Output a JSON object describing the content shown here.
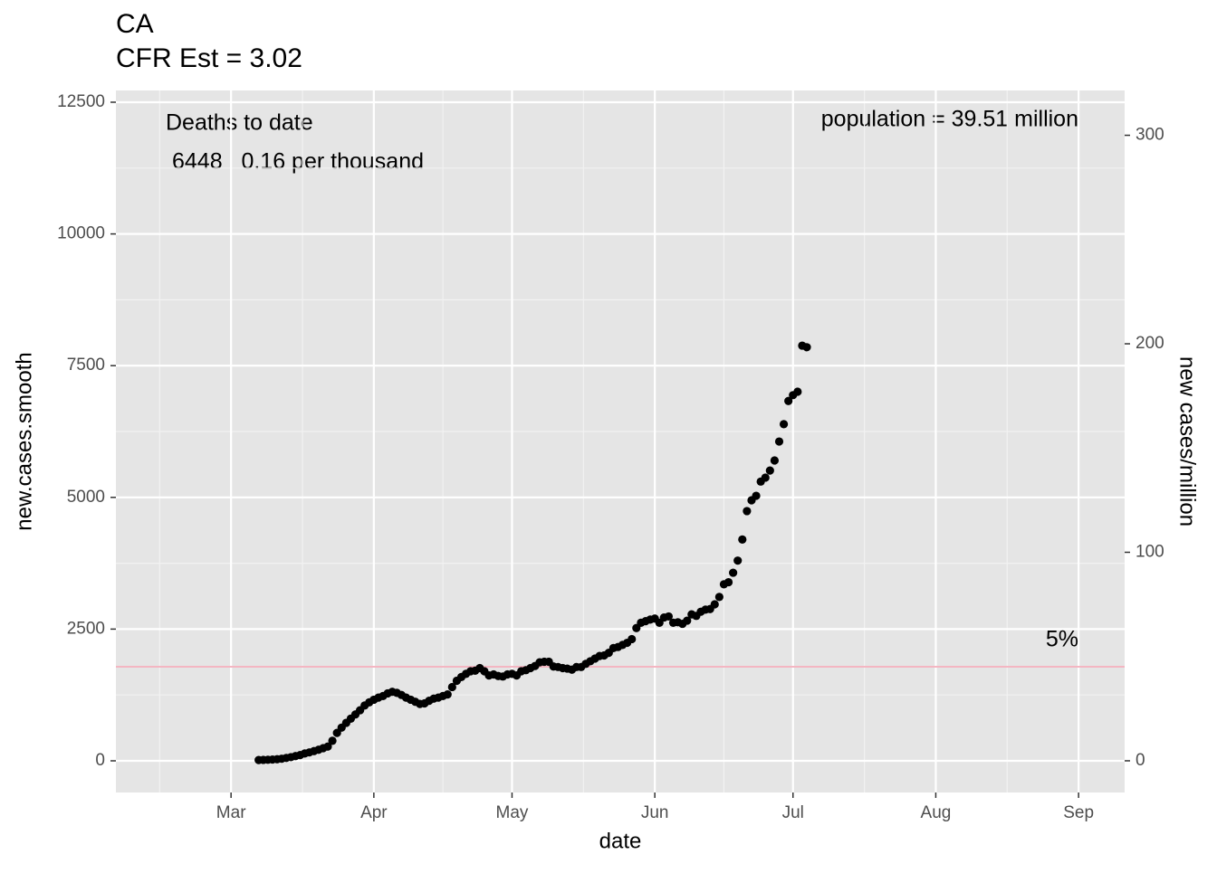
{
  "chart_data": {
    "type": "scatter",
    "title": "CA",
    "subtitle": "CFR Est = 3.02",
    "x_label": "date",
    "y_label": "new.cases.smooth",
    "y2_label": "new cases/million",
    "annotations": [
      "Deaths to date",
      "6448   0.16 per thousand",
      "population = 39.51 million"
    ],
    "reference_line": {
      "value": 1786,
      "color": "#f4b6c2",
      "label": "5%"
    },
    "xlim": [
      -25,
      194
    ],
    "xticks": [
      {
        "value": 0,
        "label": "Mar"
      },
      {
        "value": 31,
        "label": "Apr"
      },
      {
        "value": 61,
        "label": "May"
      },
      {
        "value": 92,
        "label": "Jun"
      },
      {
        "value": 122,
        "label": "Jul"
      },
      {
        "value": 153,
        "label": "Aug"
      },
      {
        "value": 184,
        "label": "Sep"
      }
    ],
    "ylim": [
      -601,
      12723
    ],
    "yticks": [
      0,
      2500,
      5000,
      7500,
      10000,
      12500
    ],
    "y2lim": [
      -15.2,
      321.5
    ],
    "y2ticks": [
      0,
      100,
      200,
      300
    ],
    "grid": true,
    "series": [
      {
        "color": "#000000",
        "x": [
          6,
          7,
          8,
          9,
          10,
          11,
          12,
          13,
          14,
          15,
          16,
          17,
          18,
          19,
          20,
          21,
          22,
          23,
          24,
          25,
          26,
          27,
          28,
          29,
          30,
          31,
          32,
          33,
          34,
          35,
          36,
          37,
          38,
          39,
          40,
          41,
          42,
          43,
          44,
          45,
          46,
          47,
          48,
          49,
          50,
          51,
          52,
          53,
          54,
          55,
          56,
          57,
          58,
          59,
          60,
          61,
          62,
          63,
          64,
          65,
          66,
          67,
          68,
          69,
          70,
          71,
          72,
          73,
          74,
          75,
          76,
          77,
          78,
          79,
          80,
          81,
          82,
          83,
          84,
          85,
          86,
          87,
          88,
          89,
          90,
          91,
          92,
          93,
          94,
          95,
          96,
          97,
          98,
          99,
          100,
          101,
          102,
          103,
          104,
          105,
          106,
          107,
          108,
          109,
          110,
          111,
          112,
          113,
          114,
          115,
          116,
          117,
          118,
          119,
          120,
          121,
          122,
          123,
          124,
          125
        ],
        "values": [
          15,
          18,
          20,
          25,
          30,
          40,
          55,
          70,
          90,
          110,
          140,
          160,
          185,
          210,
          240,
          270,
          380,
          530,
          630,
          720,
          800,
          880,
          960,
          1050,
          1110,
          1160,
          1200,
          1230,
          1280,
          1310,
          1290,
          1250,
          1200,
          1160,
          1120,
          1080,
          1090,
          1140,
          1180,
          1200,
          1230,
          1260,
          1400,
          1520,
          1590,
          1650,
          1700,
          1710,
          1760,
          1700,
          1620,
          1640,
          1610,
          1600,
          1640,
          1650,
          1620,
          1700,
          1720,
          1760,
          1800,
          1870,
          1880,
          1880,
          1790,
          1780,
          1760,
          1750,
          1730,
          1780,
          1780,
          1840,
          1890,
          1940,
          1990,
          2000,
          2050,
          2140,
          2160,
          2200,
          2240,
          2310,
          2520,
          2620,
          2650,
          2680,
          2700,
          2620,
          2720,
          2740,
          2620,
          2630,
          2600,
          2660,
          2780,
          2750,
          2830,
          2870,
          2880,
          2970,
          3110,
          3350,
          3390,
          3570,
          3800,
          4200,
          4740,
          4945,
          5030,
          5300,
          5375,
          5510,
          5700,
          6060,
          6390,
          6830,
          6940,
          7005,
          7880,
          7850
        ]
      }
    ]
  }
}
